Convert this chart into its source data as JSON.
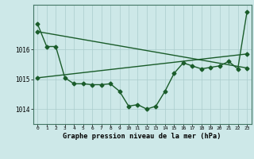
{
  "background_color": "#cde8e8",
  "grid_color": "#aacccc",
  "line_color": "#1a5c2a",
  "title": "Graphe pression niveau de la mer (hPa)",
  "xlim": [
    -0.5,
    23.5
  ],
  "ylim": [
    1013.5,
    1017.5
  ],
  "yticks": [
    1014,
    1015,
    1016
  ],
  "xticks": [
    0,
    1,
    2,
    3,
    4,
    5,
    6,
    7,
    8,
    9,
    10,
    11,
    12,
    13,
    14,
    15,
    16,
    17,
    18,
    19,
    20,
    21,
    22,
    23
  ],
  "series1_x": [
    0,
    1,
    2,
    3,
    4,
    5,
    6,
    7,
    8,
    9,
    10,
    11,
    12,
    13,
    14,
    15,
    16,
    17,
    18,
    19,
    20,
    21,
    22,
    23
  ],
  "series1_y": [
    1016.85,
    1016.1,
    1016.1,
    1015.05,
    1014.85,
    1014.85,
    1014.82,
    1014.82,
    1014.85,
    1014.6,
    1014.1,
    1014.15,
    1014.0,
    1014.1,
    1014.6,
    1015.2,
    1015.55,
    1015.45,
    1015.35,
    1015.4,
    1015.45,
    1015.6,
    1015.35,
    1017.25
  ],
  "series2_x": [
    0,
    23
  ],
  "series2_y": [
    1016.6,
    1015.38
  ],
  "series3_x": [
    0,
    23
  ],
  "series3_y": [
    1015.05,
    1015.85
  ],
  "marker": "D",
  "markersize": 2.5,
  "linewidth": 1.0
}
